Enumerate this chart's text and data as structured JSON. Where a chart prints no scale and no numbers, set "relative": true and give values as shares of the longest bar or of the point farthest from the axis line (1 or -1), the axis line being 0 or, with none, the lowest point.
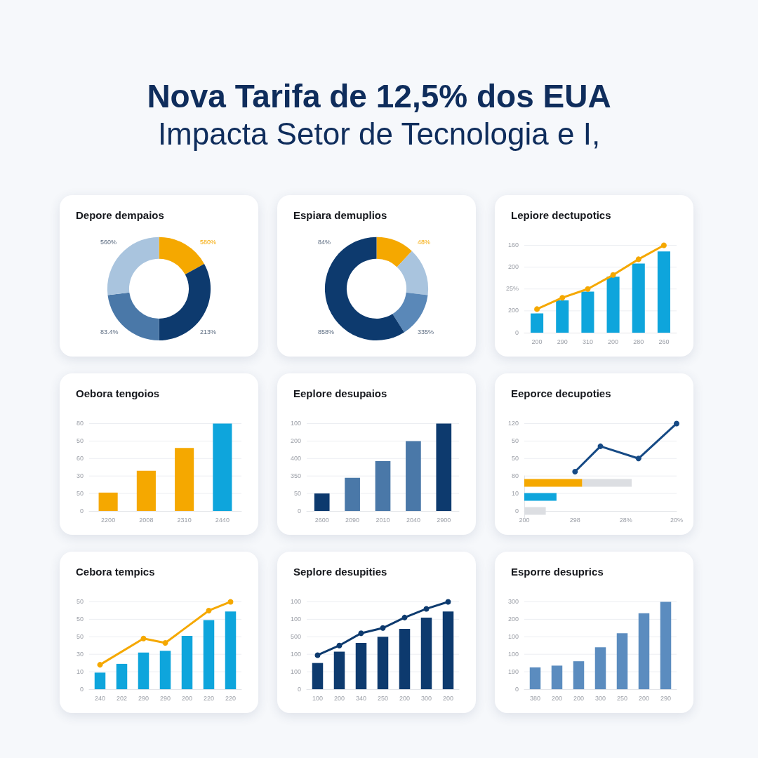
{
  "chart_data": [
    {
      "type": "other",
      "title": "Nova Tarifa de 12,5% dos EUA",
      "subtitle": "Impacta Setor de Tecnologia e I,"
    },
    {
      "type": "donut",
      "title": "Depore dempaios",
      "annotations": [
        "580%",
        "213%",
        "83.4%",
        "560%"
      ],
      "categories": [
        null,
        null,
        null,
        null
      ],
      "values": [
        17,
        33,
        23,
        27
      ],
      "colors": [
        "#f5a800",
        "#0d3a6e",
        "#4a78a8",
        "#a9c4de"
      ]
    },
    {
      "type": "donut",
      "title": "Espiara demuplios",
      "annotations": [
        "48%",
        "335%",
        "858%",
        "84%"
      ],
      "categories": [
        null,
        null,
        null,
        null
      ],
      "values": [
        12,
        15,
        14,
        59
      ],
      "colors": [
        "#f5a800",
        "#a9c4de",
        "#5a88b8",
        "#0d3a6e"
      ]
    },
    {
      "type": "bar",
      "title": "Lepiore dectupotics",
      "relative": true,
      "annotations": [
        "0",
        "200",
        "25%",
        "200",
        "160"
      ],
      "categories": [
        "200",
        "290",
        "310",
        "200",
        "280",
        "260"
      ],
      "grid": "y",
      "marker": "circle",
      "series": [
        {
          "type": "bar",
          "color": "#0ea5dc",
          "values": [
            0.22,
            0.37,
            0.47,
            0.64,
            0.79,
            0.93
          ]
        },
        {
          "type": "line",
          "color": "#f5a800",
          "values": [
            0.27,
            0.4,
            0.5,
            0.66,
            0.84,
            1
          ]
        }
      ]
    },
    {
      "type": "bar",
      "title": "Oebora tengoios",
      "relative": true,
      "annotations": [
        "0",
        "50",
        "30",
        "60",
        "50",
        "80"
      ],
      "categories": [
        "2200",
        "2008",
        "2310",
        "2440"
      ],
      "values": [
        0.21,
        0.46,
        0.72,
        1
      ],
      "colors": [
        "#f5a800",
        "#f5a800",
        "#f5a800",
        "#0ea5dc"
      ],
      "grid": "y"
    },
    {
      "type": "bar",
      "title": "Eeplore desupaios",
      "relative": true,
      "annotations": [
        "0",
        "50",
        "350",
        "400",
        "200",
        "100"
      ],
      "categories": [
        "2600",
        "2090",
        "2010",
        "2040",
        "2900"
      ],
      "values": [
        0.2,
        0.38,
        0.57,
        0.8,
        1
      ],
      "colors": [
        "#0d3a6e",
        "#4a78a8",
        "#4a78a8",
        "#4a78a8",
        "#0d3a6e"
      ],
      "grid": "y"
    },
    {
      "type": "line",
      "title": "Eeporce decupoties",
      "relative": true,
      "annotations": [
        "0",
        "10",
        "80",
        "50",
        "50",
        "120"
      ],
      "categories": [
        "200",
        null,
        null,
        null,
        "298",
        null,
        null,
        null,
        "28%",
        null,
        null,
        null,
        "20%"
      ],
      "grid": "y",
      "marker": "circle",
      "series": [
        {
          "color": "#164a85",
          "values": [
            null,
            null,
            null,
            null,
            0.45,
            null,
            0.74,
            null,
            null,
            0.6,
            null,
            null,
            1
          ]
        }
      ]
    },
    {
      "type": "bar",
      "orientation": "horizontal",
      "stacked": true,
      "relative": true,
      "categories": [
        null,
        null,
        null
      ],
      "series": [
        {
          "colors": [
            "#f5a800",
            "#0ea5dc",
            "#dcdee2"
          ],
          "values": [
            0.54,
            0.3,
            0.2
          ]
        },
        {
          "color": "#dcdee2",
          "values": [
            0.46,
            null,
            null
          ]
        }
      ]
    },
    {
      "type": "bar",
      "title": "Cebora tempics",
      "relative": true,
      "annotations": [
        "0",
        "10",
        "30",
        "50",
        "50",
        "50"
      ],
      "categories": [
        "240",
        "202",
        "290",
        "290",
        "200",
        "220",
        "220"
      ],
      "grid": "y",
      "marker": "circle",
      "series": [
        {
          "type": "bar",
          "color": "#0ea5dc",
          "values": [
            0.19,
            0.29,
            0.42,
            0.44,
            0.61,
            0.79,
            0.89
          ]
        },
        {
          "type": "line",
          "color": "#f5a800",
          "values": [
            0.28,
            null,
            0.58,
            0.53,
            null,
            0.9,
            1
          ]
        }
      ]
    },
    {
      "type": "bar",
      "title": "Seplore desupities",
      "relative": true,
      "annotations": [
        "0",
        "100",
        "100",
        "500",
        "100",
        "100"
      ],
      "categories": [
        "100",
        "200",
        "340",
        "250",
        "200",
        "300",
        "200"
      ],
      "grid": "y",
      "marker": "circle",
      "series": [
        {
          "type": "bar",
          "color": "#0d3a6e",
          "values": [
            0.3,
            0.43,
            0.53,
            0.6,
            0.69,
            0.82,
            0.89
          ]
        },
        {
          "type": "line",
          "color": "#0d3a6e",
          "values": [
            0.39,
            0.5,
            0.64,
            0.7,
            0.82,
            0.92,
            1
          ]
        }
      ]
    },
    {
      "type": "bar",
      "title": "Esporre desuprics",
      "relative": true,
      "annotations": [
        "0",
        "190",
        "100",
        "100",
        "200",
        "300"
      ],
      "categories": [
        "380",
        "200",
        "200",
        "300",
        "250",
        "200",
        "290"
      ],
      "values": [
        0.25,
        0.27,
        0.32,
        0.48,
        0.64,
        0.87,
        1
      ],
      "color": "#5b8cbf",
      "grid": "y"
    }
  ]
}
